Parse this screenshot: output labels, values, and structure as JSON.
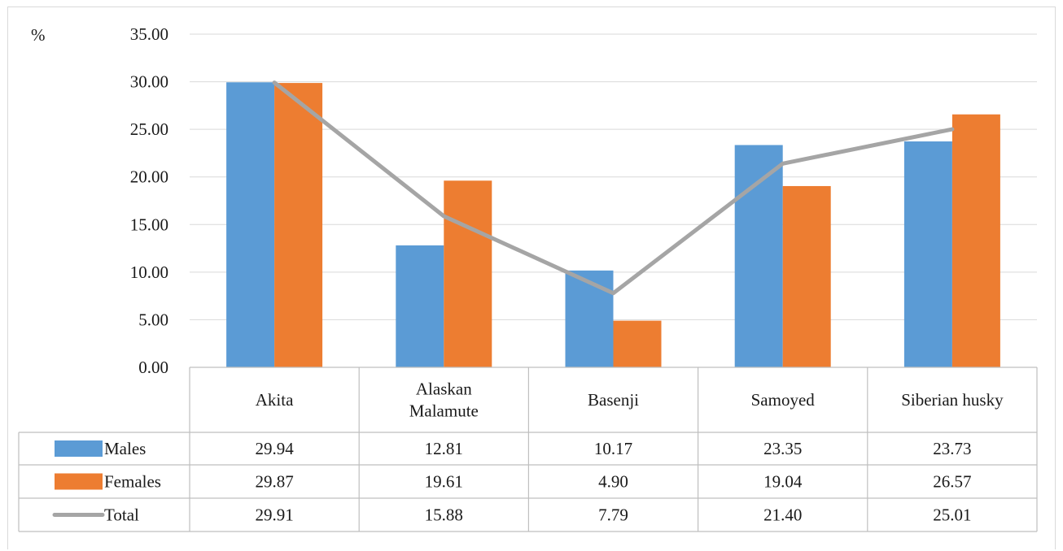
{
  "chart_data": {
    "type": "bar",
    "y_unit_label": "%",
    "categories": [
      "Akita",
      "Alaskan Malamute",
      "Basenji",
      "Samoyed",
      "Siberian husky"
    ],
    "category_lines": [
      [
        "Akita"
      ],
      [
        "Alaskan",
        "Malamute"
      ],
      [
        "Basenji"
      ],
      [
        "Samoyed"
      ],
      [
        "Siberian husky"
      ]
    ],
    "series": [
      {
        "name": "Males",
        "kind": "bar",
        "color": "#5b9bd5",
        "values": [
          29.94,
          12.81,
          10.17,
          23.35,
          23.73
        ]
      },
      {
        "name": "Females",
        "kind": "bar",
        "color": "#ed7d31",
        "values": [
          29.87,
          19.61,
          4.9,
          19.04,
          26.57
        ]
      },
      {
        "name": "Total",
        "kind": "line",
        "color": "#a5a5a5",
        "values": [
          29.91,
          15.88,
          7.79,
          21.4,
          25.01
        ]
      }
    ],
    "table_values": [
      [
        "29.94",
        "12.81",
        "10.17",
        "23.35",
        "23.73"
      ],
      [
        "29.87",
        "19.61",
        "4.90",
        "19.04",
        "26.57"
      ],
      [
        "29.91",
        "15.88",
        "7.79",
        "21.40",
        "25.01"
      ]
    ],
    "ylim": [
      0,
      35
    ],
    "yticks": [
      "0.00",
      "5.00",
      "10.00",
      "15.00",
      "20.00",
      "25.00",
      "30.00",
      "35.00"
    ],
    "grid": true,
    "legend": "data-table-left"
  }
}
